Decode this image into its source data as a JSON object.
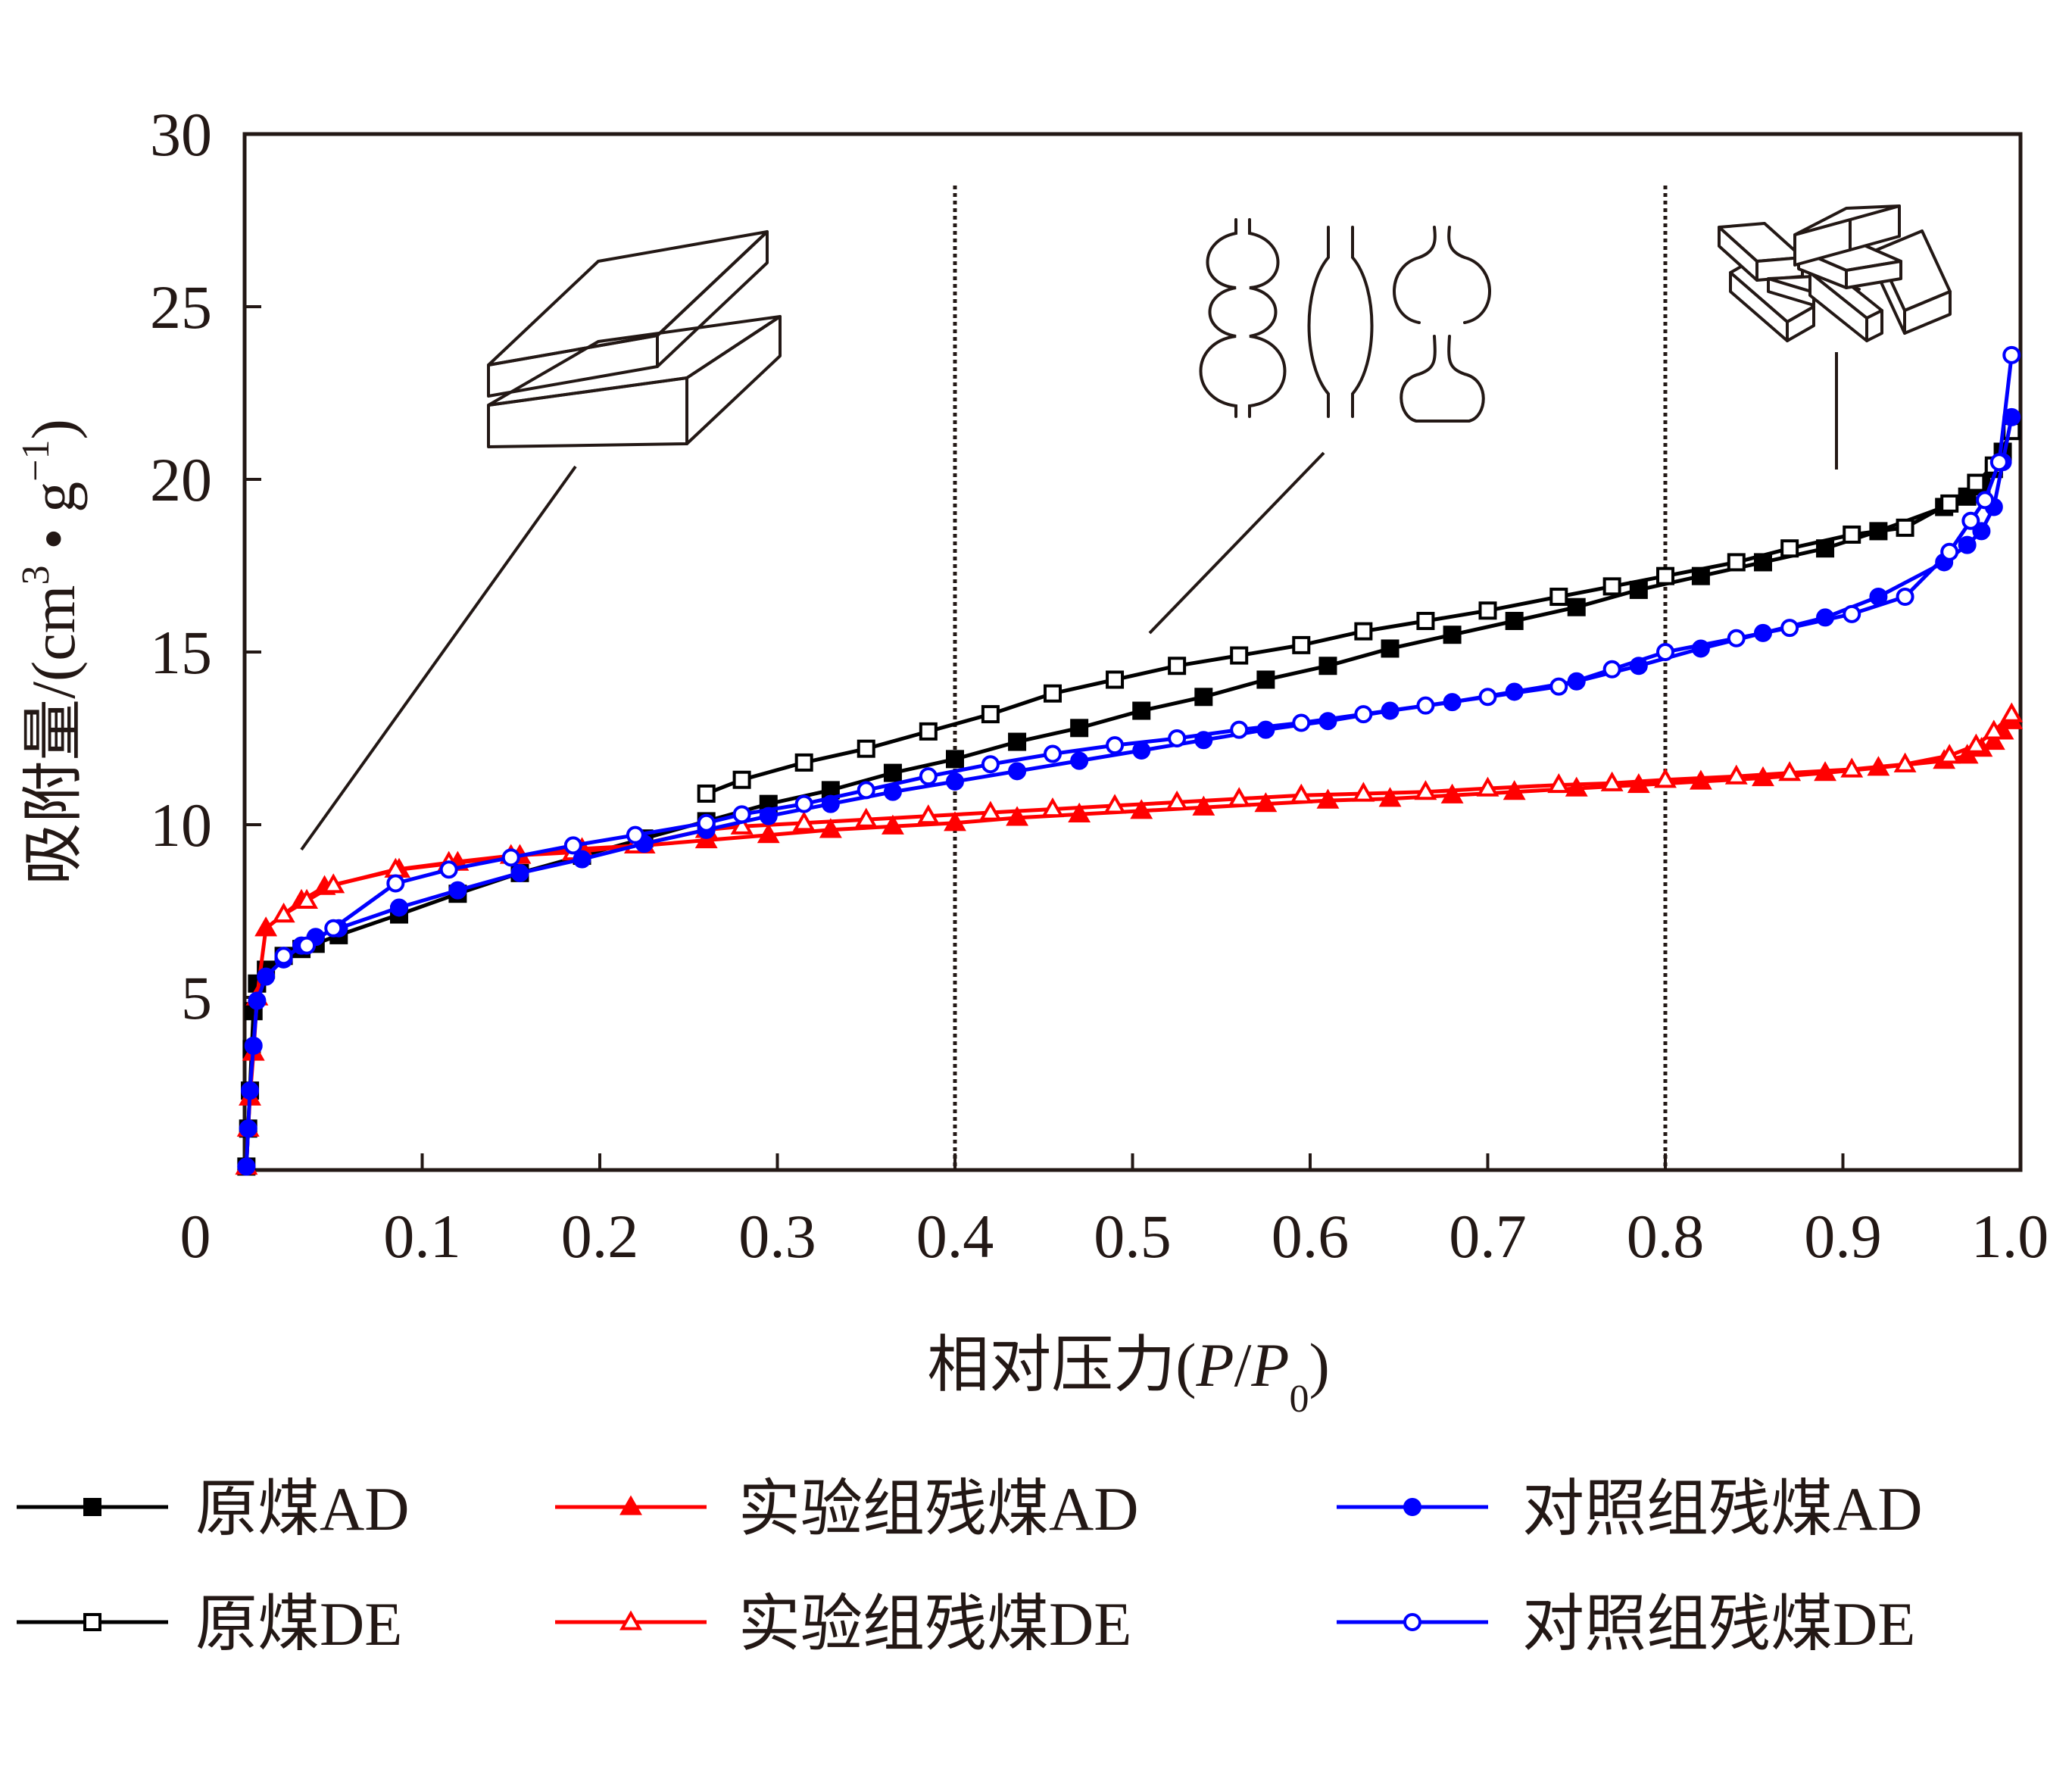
{
  "chart_data": {
    "type": "line",
    "title": "",
    "xlabel": "相对压力(P/P0)",
    "xlabel_parts": {
      "prefix": "相对压力(",
      "p": "P",
      "slash": "/",
      "p0": "P",
      "sub0": "0",
      "suffix": ")"
    },
    "ylabel": "吸附量/(cm3·g-1)",
    "ylabel_parts": {
      "prefix": "吸附量/(cm",
      "sup3": "3",
      "dot": " • g",
      "supneg1": "−1",
      "suffix": ")"
    },
    "xlim": [
      0,
      1.0
    ],
    "ylim": [
      0,
      30
    ],
    "x_ticks": [
      0,
      0.1,
      0.2,
      0.3,
      0.4,
      0.5,
      0.6,
      0.7,
      0.8,
      0.9,
      1.0
    ],
    "x_tick_labels": [
      "0",
      "0.1",
      "0.2",
      "0.3",
      "0.4",
      "0.5",
      "0.6",
      "0.7",
      "0.8",
      "0.9",
      "1.0"
    ],
    "y_ticks": [
      5,
      10,
      15,
      20,
      25,
      30
    ],
    "y_tick_labels": [
      "5",
      "10",
      "15",
      "20",
      "25",
      "30"
    ],
    "vlines": [
      0.4,
      0.8
    ],
    "grid": false,
    "legend_position": "bottom",
    "series": [
      {
        "name": "原煤AD",
        "color": "#000000",
        "marker": "square",
        "filled": true,
        "x": [
          0.001,
          0.002,
          0.003,
          0.004,
          0.005,
          0.007,
          0.012,
          0.022,
          0.032,
          0.04,
          0.053,
          0.087,
          0.12,
          0.155,
          0.19,
          0.225,
          0.26,
          0.295,
          0.33,
          0.365,
          0.4,
          0.435,
          0.47,
          0.505,
          0.54,
          0.575,
          0.61,
          0.645,
          0.68,
          0.715,
          0.75,
          0.785,
          0.82,
          0.855,
          0.89,
          0.92,
          0.957,
          0.97,
          0.978,
          0.985,
          0.99,
          0.995
        ],
        "y": [
          0.1,
          1.2,
          2.3,
          3.5,
          4.6,
          5.4,
          5.8,
          6.2,
          6.4,
          6.55,
          6.8,
          7.4,
          8.0,
          8.6,
          9.1,
          9.6,
          10.1,
          10.6,
          11.0,
          11.5,
          11.9,
          12.4,
          12.8,
          13.3,
          13.7,
          14.2,
          14.6,
          15.1,
          15.5,
          15.9,
          16.3,
          16.8,
          17.2,
          17.6,
          18.0,
          18.5,
          19.2,
          19.5,
          19.8,
          20.3,
          20.8,
          21.5
        ]
      },
      {
        "name": "原煤DE",
        "color": "#000000",
        "marker": "square",
        "filled": false,
        "x": [
          0.995,
          0.985,
          0.975,
          0.96,
          0.935,
          0.905,
          0.87,
          0.84,
          0.8,
          0.77,
          0.74,
          0.7,
          0.665,
          0.63,
          0.595,
          0.56,
          0.525,
          0.49,
          0.455,
          0.42,
          0.385,
          0.35,
          0.315,
          0.28,
          0.26
        ],
        "y": [
          21.4,
          20.4,
          19.9,
          19.3,
          18.6,
          18.4,
          18.0,
          17.6,
          17.2,
          16.9,
          16.6,
          16.2,
          15.9,
          15.6,
          15.2,
          14.9,
          14.6,
          14.2,
          13.8,
          13.2,
          12.7,
          12.2,
          11.8,
          11.3,
          10.9
        ]
      },
      {
        "name": "实验组残煤AD",
        "color": "#ff0000",
        "marker": "triangle",
        "filled": true,
        "x": [
          0.001,
          0.002,
          0.003,
          0.005,
          0.007,
          0.012,
          0.022,
          0.032,
          0.045,
          0.087,
          0.12,
          0.155,
          0.19,
          0.225,
          0.26,
          0.295,
          0.33,
          0.365,
          0.4,
          0.435,
          0.47,
          0.505,
          0.54,
          0.575,
          0.61,
          0.645,
          0.68,
          0.715,
          0.75,
          0.785,
          0.82,
          0.855,
          0.89,
          0.92,
          0.957,
          0.97,
          0.978,
          0.985,
          0.99,
          0.995
        ],
        "y": [
          0.1,
          1.2,
          2.1,
          3.4,
          5.0,
          7.0,
          7.4,
          7.8,
          8.2,
          8.7,
          8.9,
          9.1,
          9.3,
          9.4,
          9.55,
          9.7,
          9.85,
          9.95,
          10.05,
          10.2,
          10.3,
          10.4,
          10.5,
          10.6,
          10.7,
          10.75,
          10.85,
          10.95,
          11.05,
          11.15,
          11.25,
          11.35,
          11.5,
          11.65,
          11.85,
          12.0,
          12.2,
          12.4,
          12.7,
          13.0
        ]
      },
      {
        "name": "实验组残煤DE",
        "color": "#ff0000",
        "marker": "triangle",
        "filled": false,
        "x": [
          0.995,
          0.985,
          0.975,
          0.96,
          0.935,
          0.905,
          0.87,
          0.84,
          0.8,
          0.77,
          0.74,
          0.7,
          0.665,
          0.63,
          0.595,
          0.56,
          0.525,
          0.49,
          0.455,
          0.42,
          0.385,
          0.35,
          0.315,
          0.28,
          0.26,
          0.22,
          0.185,
          0.15,
          0.115,
          0.085,
          0.05,
          0.035,
          0.022
        ],
        "y": [
          13.2,
          12.7,
          12.3,
          12.0,
          11.75,
          11.6,
          11.5,
          11.4,
          11.3,
          11.2,
          11.15,
          11.05,
          10.95,
          10.9,
          10.85,
          10.75,
          10.65,
          10.55,
          10.45,
          10.35,
          10.25,
          10.15,
          10.05,
          9.95,
          9.85,
          9.4,
          9.2,
          9.1,
          8.9,
          8.7,
          8.25,
          7.8,
          7.4
        ]
      },
      {
        "name": "对照组残煤AD",
        "color": "#0000ff",
        "marker": "circle",
        "filled": true,
        "x": [
          0.001,
          0.002,
          0.003,
          0.005,
          0.007,
          0.012,
          0.022,
          0.032,
          0.04,
          0.053,
          0.087,
          0.12,
          0.155,
          0.19,
          0.225,
          0.26,
          0.295,
          0.33,
          0.365,
          0.4,
          0.435,
          0.47,
          0.505,
          0.54,
          0.575,
          0.61,
          0.645,
          0.68,
          0.715,
          0.75,
          0.785,
          0.82,
          0.855,
          0.89,
          0.92,
          0.957,
          0.97,
          0.978,
          0.985,
          0.99,
          0.995
        ],
        "y": [
          0.1,
          1.2,
          2.3,
          3.6,
          4.9,
          5.6,
          6.1,
          6.5,
          6.75,
          7.0,
          7.6,
          8.1,
          8.6,
          9.0,
          9.45,
          9.85,
          10.25,
          10.6,
          10.95,
          11.25,
          11.55,
          11.85,
          12.15,
          12.45,
          12.75,
          13.0,
          13.3,
          13.55,
          13.85,
          14.15,
          14.6,
          15.1,
          15.55,
          16.0,
          16.6,
          17.6,
          18.1,
          18.5,
          19.2,
          20.5,
          21.8
        ]
      },
      {
        "name": "对照组残煤DE",
        "color": "#0000ff",
        "marker": "circle",
        "filled": false,
        "x": [
          0.995,
          0.988,
          0.98,
          0.972,
          0.96,
          0.935,
          0.905,
          0.87,
          0.84,
          0.8,
          0.77,
          0.74,
          0.7,
          0.665,
          0.63,
          0.595,
          0.56,
          0.525,
          0.49,
          0.455,
          0.42,
          0.385,
          0.35,
          0.315,
          0.28,
          0.26,
          0.22,
          0.185,
          0.15,
          0.115,
          0.085,
          0.05,
          0.035,
          0.022
        ],
        "y": [
          23.6,
          20.5,
          19.4,
          18.8,
          17.9,
          16.6,
          16.1,
          15.7,
          15.4,
          15.0,
          14.5,
          14.0,
          13.7,
          13.45,
          13.2,
          12.95,
          12.75,
          12.5,
          12.3,
          12.05,
          11.75,
          11.4,
          11.0,
          10.6,
          10.3,
          10.05,
          9.7,
          9.4,
          9.05,
          8.7,
          8.3,
          7.0,
          6.5,
          6.2
        ]
      }
    ]
  },
  "legend": {
    "items": [
      "原煤AD",
      "原煤DE",
      "实验组残煤AD",
      "实验组残煤DE",
      "对照组残煤AD",
      "对照组残煤DE"
    ]
  }
}
